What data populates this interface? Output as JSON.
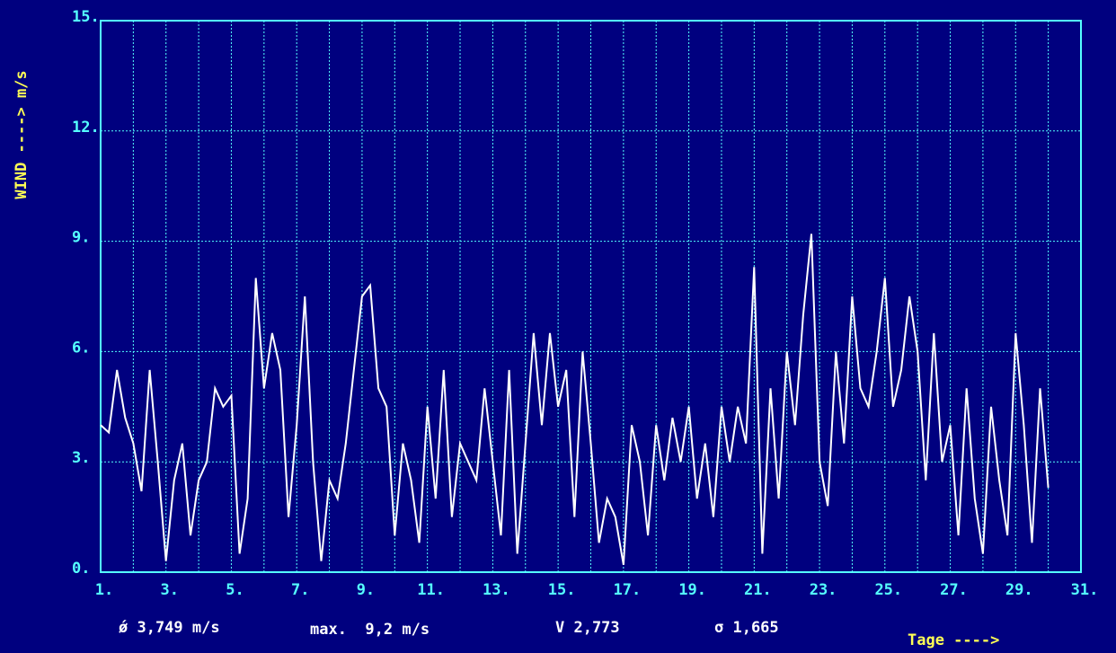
{
  "chart_data": {
    "type": "line",
    "ylabel": "WIND ----> m/s",
    "xlabel": "Tage ---->",
    "stats": [
      "ǿ 3,749 m/s",
      "max.  9,2 m/s",
      "V 2,773",
      "σ 1,665"
    ],
    "xlim": [
      1,
      31
    ],
    "ylim": [
      0,
      15
    ],
    "xticks": [
      {
        "value": 1,
        "label": "1."
      },
      {
        "value": 3,
        "label": "3."
      },
      {
        "value": 5,
        "label": "5."
      },
      {
        "value": 7,
        "label": "7."
      },
      {
        "value": 9,
        "label": "9."
      },
      {
        "value": 11,
        "label": "11."
      },
      {
        "value": 13,
        "label": "13."
      },
      {
        "value": 15,
        "label": "15."
      },
      {
        "value": 17,
        "label": "17."
      },
      {
        "value": 19,
        "label": "19."
      },
      {
        "value": 21,
        "label": "21."
      },
      {
        "value": 23,
        "label": "23."
      },
      {
        "value": 25,
        "label": "25."
      },
      {
        "value": 27,
        "label": "27."
      },
      {
        "value": 29,
        "label": "29."
      },
      {
        "value": 31,
        "label": "31."
      }
    ],
    "yticks": [
      {
        "value": 0,
        "label": "0."
      },
      {
        "value": 3,
        "label": "3."
      },
      {
        "value": 6,
        "label": "6."
      },
      {
        "value": 9,
        "label": "9."
      },
      {
        "value": 12,
        "label": "12."
      },
      {
        "value": 15,
        "label": "15."
      }
    ],
    "grid": true,
    "color": "#ffffff",
    "x": [
      1,
      1.25,
      1.5,
      1.75,
      2,
      2.25,
      2.5,
      2.75,
      3,
      3.25,
      3.5,
      3.75,
      4,
      4.25,
      4.5,
      4.75,
      5,
      5.25,
      5.5,
      5.75,
      6,
      6.25,
      6.5,
      6.75,
      7,
      7.25,
      7.5,
      7.75,
      8,
      8.25,
      8.5,
      8.75,
      9,
      9.25,
      9.5,
      9.75,
      10,
      10.25,
      10.5,
      10.75,
      11,
      11.25,
      11.5,
      11.75,
      12,
      12.25,
      12.5,
      12.75,
      13,
      13.25,
      13.5,
      13.75,
      14,
      14.25,
      14.5,
      14.75,
      15,
      15.25,
      15.5,
      15.75,
      16,
      16.25,
      16.5,
      16.75,
      17,
      17.25,
      17.5,
      17.75,
      18,
      18.25,
      18.5,
      18.75,
      19,
      19.25,
      19.5,
      19.75,
      20,
      20.25,
      20.5,
      20.75,
      21,
      21.25,
      21.5,
      21.75,
      22,
      22.25,
      22.5,
      22.75,
      23,
      23.25,
      23.5,
      23.75,
      24,
      24.25,
      24.5,
      24.75,
      25,
      25.25,
      25.5,
      25.75,
      26,
      26.25,
      26.5,
      26.75,
      27,
      27.25,
      27.5,
      27.75,
      28,
      28.25,
      28.5,
      28.75,
      29,
      29.25,
      29.5,
      29.75,
      30
    ],
    "values": [
      4.0,
      3.8,
      5.5,
      4.2,
      3.5,
      2.2,
      5.5,
      3.0,
      0.3,
      2.5,
      3.5,
      1.0,
      2.5,
      3.0,
      5.0,
      4.5,
      4.8,
      0.5,
      2.0,
      8.0,
      5.0,
      6.5,
      5.5,
      1.5,
      4.0,
      7.5,
      3.0,
      0.3,
      2.5,
      2.0,
      3.5,
      5.5,
      7.5,
      7.8,
      5.0,
      4.5,
      1.0,
      3.5,
      2.5,
      0.8,
      4.5,
      2.0,
      5.5,
      1.5,
      3.5,
      3.0,
      2.5,
      5.0,
      3.0,
      1.0,
      5.5,
      0.5,
      3.5,
      6.5,
      4.0,
      6.5,
      4.5,
      5.5,
      1.5,
      6.0,
      3.5,
      0.8,
      2.0,
      1.5,
      0.2,
      4.0,
      3.0,
      1.0,
      4.0,
      2.5,
      4.2,
      3.0,
      4.5,
      2.0,
      3.5,
      1.5,
      4.5,
      3.0,
      4.5,
      3.5,
      8.3,
      0.5,
      5.0,
      2.0,
      6.0,
      4.0,
      7.0,
      9.2,
      3.0,
      1.8,
      6.0,
      3.5,
      7.5,
      5.0,
      4.5,
      6.0,
      8.0,
      4.5,
      5.5,
      7.5,
      6.0,
      2.5,
      6.5,
      3.0,
      4.0,
      1.0,
      5.0,
      2.0,
      0.5,
      4.5,
      2.5,
      1.0,
      6.5,
      4.0,
      0.8,
      5.0,
      2.3
    ]
  }
}
